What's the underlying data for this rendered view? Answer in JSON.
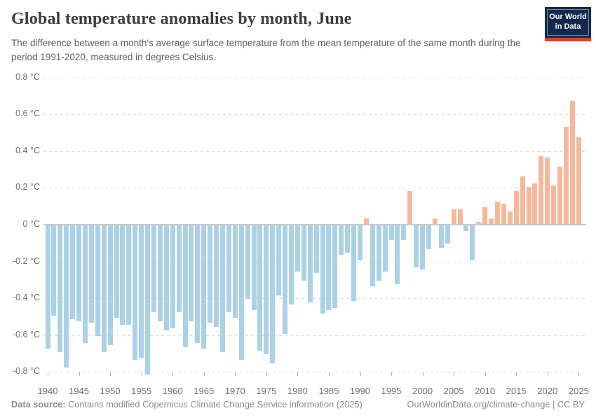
{
  "header": {
    "title": "Global temperature anomalies by month, June",
    "subtitle": "The difference between a month's average surface temperature from the mean temperature of the same month during the period 1991-2020, measured in degrees Celsius.",
    "logo": {
      "line1": "Our World",
      "line2": "in Data"
    }
  },
  "chart_data": {
    "type": "bar",
    "title": "Global temperature anomalies by month, June",
    "unit": "°C",
    "baseline_period": "1991-2020",
    "month": "June",
    "x": [
      1940,
      1941,
      1942,
      1943,
      1944,
      1945,
      1946,
      1947,
      1948,
      1949,
      1950,
      1951,
      1952,
      1953,
      1954,
      1955,
      1956,
      1957,
      1958,
      1959,
      1960,
      1961,
      1962,
      1963,
      1964,
      1965,
      1966,
      1967,
      1968,
      1969,
      1970,
      1971,
      1972,
      1973,
      1974,
      1975,
      1976,
      1977,
      1978,
      1979,
      1980,
      1981,
      1982,
      1983,
      1984,
      1985,
      1986,
      1987,
      1988,
      1989,
      1990,
      1991,
      1992,
      1993,
      1994,
      1995,
      1996,
      1997,
      1998,
      1999,
      2000,
      2001,
      2002,
      2003,
      2004,
      2005,
      2006,
      2007,
      2008,
      2009,
      2010,
      2011,
      2012,
      2013,
      2014,
      2015,
      2016,
      2017,
      2018,
      2019,
      2020,
      2021,
      2022,
      2023,
      2024,
      2025
    ],
    "values": [
      -0.67,
      -0.49,
      -0.69,
      -0.77,
      -0.51,
      -0.52,
      -0.64,
      -0.53,
      -0.6,
      -0.69,
      -0.65,
      -0.5,
      -0.54,
      -0.54,
      -0.73,
      -0.72,
      -0.81,
      -0.47,
      -0.52,
      -0.57,
      -0.56,
      -0.47,
      -0.66,
      -0.52,
      -0.64,
      -0.67,
      -0.53,
      -0.55,
      -0.69,
      -0.47,
      -0.5,
      -0.73,
      -0.4,
      -0.46,
      -0.68,
      -0.7,
      -0.75,
      -0.38,
      -0.59,
      -0.43,
      -0.25,
      -0.3,
      -0.42,
      -0.26,
      -0.48,
      -0.46,
      -0.45,
      -0.16,
      -0.15,
      -0.41,
      -0.19,
      0.03,
      -0.33,
      -0.3,
      -0.25,
      -0.08,
      -0.32,
      -0.08,
      0.18,
      -0.23,
      -0.24,
      -0.13,
      0.03,
      -0.12,
      -0.1,
      0.08,
      0.08,
      -0.03,
      -0.19,
      0.01,
      0.09,
      0.03,
      0.12,
      0.11,
      0.07,
      0.18,
      0.26,
      0.2,
      0.22,
      0.37,
      0.36,
      0.21,
      0.31,
      0.53,
      0.67,
      0.47
    ],
    "x_tick_labels": [
      "1940",
      "1945",
      "1950",
      "1955",
      "1960",
      "1965",
      "1970",
      "1975",
      "1980",
      "1985",
      "1990",
      "1995",
      "2000",
      "2005",
      "2010",
      "2015",
      "2020",
      "2025"
    ],
    "y_tick_labels": [
      "0.8 °C",
      "0.6 °C",
      "0.4 °C",
      "0.2 °C",
      "0 °C",
      "-0.2 °C",
      "-0.4 °C",
      "-0.6 °C",
      "-0.8 °C"
    ],
    "y_tick_values": [
      0.8,
      0.6,
      0.4,
      0.2,
      0,
      -0.2,
      -0.4,
      -0.6,
      -0.8
    ],
    "ylim": [
      -0.8,
      0.8
    ],
    "grid": "horizontal-dashed",
    "legend": "none",
    "colors": {
      "positive": "#f6b89c",
      "negative": "#abd1e6",
      "zero_line": "#c9c9c9"
    }
  },
  "footer": {
    "data_source_label": "Data source:",
    "data_source_text": " Contains modified Copernicus Climate Change Service information (2025)",
    "credit": "OurWorldinData.org/climate-change | CC BY"
  }
}
